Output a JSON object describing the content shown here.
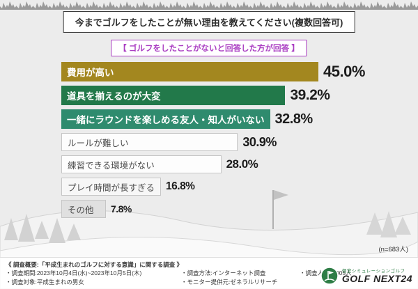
{
  "title": "今までゴルフをしたことが無い理由を教えてください(複数回答可)",
  "subtitle": "【 ゴルフをしたことがないと回答した方が回答 】",
  "sample_note": "(n=683人)",
  "chart_data": {
    "type": "bar",
    "orientation": "horizontal",
    "title": "今までゴルフをしたことが無い理由を教えてください(複数回答可)",
    "categories": [
      "費用が高い",
      "道具を揃えるのが大変",
      "一緒にラウンドを楽しめる友人・知人がいない",
      "ルールが難しい",
      "練習できる環境がない",
      "プレイ時間が長すぎる",
      "その他"
    ],
    "values": [
      45.0,
      39.2,
      32.8,
      30.9,
      28.0,
      16.8,
      7.8
    ],
    "value_labels": [
      "45.0%",
      "39.2%",
      "32.8%",
      "30.9%",
      "28.0%",
      "16.8%",
      "7.8%"
    ],
    "bar_colors": [
      "#a3871f",
      "#22794a",
      "#2f8b6e",
      "#fdfdfd",
      "#fdfdfd",
      "#f7f7f7",
      "#e0e0e0"
    ],
    "xlim": [
      0,
      50
    ],
    "grid": false,
    "legend": false
  },
  "footer": {
    "overview": "《 調査概要:「平成生まれのゴルフに対する意識」に関する調査 》",
    "period": "・調査期間:2023年10月4日(水)~2023年10月5日(木)",
    "target": "・調査対象:平成生まれの男女",
    "method": "・調査方法:インターネット調査",
    "panel": "・モニター提供元:ゼネラルリサーチ",
    "respondents": "・調査人数:1,005人",
    "logo_small": "個室シミュレーションゴルフ",
    "logo_main": "GOLF NEXT24"
  },
  "colors": {
    "accent_purple": "#aa3dc2",
    "bar_gold": "#a3871f",
    "bar_green": "#22794a",
    "bar_teal": "#2f8b6e",
    "logo_green": "#2e7d46",
    "background": "#ececec"
  }
}
